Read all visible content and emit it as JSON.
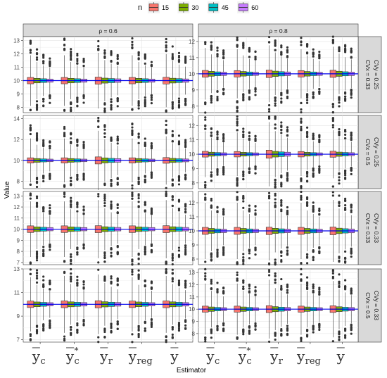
{
  "chart_data": {
    "type": "boxplot",
    "xlabel": "Estimator",
    "ylabel": "Value",
    "reference_line": 10,
    "legend": {
      "title": "n",
      "position": "top",
      "entries": [
        {
          "label": "15",
          "color": "#F8766D"
        },
        {
          "label": "30",
          "color": "#7CAE00"
        },
        {
          "label": "45",
          "color": "#00BFC4"
        },
        {
          "label": "60",
          "color": "#C77CFF"
        }
      ]
    },
    "estimators": [
      {
        "base": "y",
        "sub": "c",
        "star": ""
      },
      {
        "base": "y",
        "sub": "c",
        "star": "*"
      },
      {
        "base": "y",
        "sub": "r",
        "star": ""
      },
      {
        "base": "y",
        "sub": "reg",
        "star": ""
      },
      {
        "base": "y",
        "sub": "",
        "star": ""
      }
    ],
    "col_strips": [
      "ρ = 0.6",
      "ρ = 0.8"
    ],
    "row_strips": [
      "CVy = 0.25\nCVx = 0.33",
      "CVy = 0.25\nCVx = 0.5",
      "CVy = 0.33\nCVx = 0.33",
      "CVy = 0.33\nCVx = 0.5"
    ],
    "row_strips_display": [
      [
        "CVx = 0.33",
        "CVy = 0.25"
      ],
      [
        "CVx = 0.5",
        "CVy = 0.25"
      ],
      [
        "CVx = 0.33",
        "CVy = 0.33"
      ],
      [
        "CVx = 0.5",
        "CVy = 0.33"
      ]
    ],
    "panels": [
      {
        "row": 0,
        "col": 0,
        "ylim": [
          7.6,
          13.3
        ],
        "yticks": [
          8,
          9,
          10,
          11,
          12,
          13
        ],
        "spread": [
          [
            0.48,
            1.9
          ],
          [
            0.34,
            1.4
          ],
          [
            0.28,
            1.15
          ],
          [
            0.24,
            1.0
          ]
        ],
        "est_scale": [
          1.0,
          1.0,
          1.1,
          1.0,
          1.05
        ]
      },
      {
        "row": 0,
        "col": 1,
        "ylim": [
          7.6,
          12.3
        ],
        "yticks": [
          8,
          9,
          10,
          11,
          12
        ],
        "spread": [
          [
            0.42,
            1.6
          ],
          [
            0.3,
            1.2
          ],
          [
            0.24,
            0.98
          ],
          [
            0.21,
            0.85
          ]
        ],
        "est_scale": [
          1.0,
          0.95,
          1.1,
          0.95,
          1.05
        ]
      },
      {
        "row": 1,
        "col": 0,
        "ylim": [
          7.3,
          14.3
        ],
        "yticks": [
          8,
          10,
          12,
          14
        ],
        "spread": [
          [
            0.5,
            2.1
          ],
          [
            0.36,
            1.5
          ],
          [
            0.29,
            1.25
          ],
          [
            0.25,
            1.05
          ]
        ],
        "est_scale": [
          1.0,
          1.0,
          1.35,
          1.0,
          1.1
        ]
      },
      {
        "row": 1,
        "col": 1,
        "ylim": [
          7.6,
          12.7
        ],
        "yticks": [
          8,
          9,
          10,
          11,
          12
        ],
        "spread": [
          [
            0.4,
            1.6
          ],
          [
            0.28,
            1.15
          ],
          [
            0.23,
            0.95
          ],
          [
            0.2,
            0.82
          ]
        ],
        "est_scale": [
          1.0,
          0.95,
          1.4,
          0.95,
          1.05
        ]
      },
      {
        "row": 2,
        "col": 0,
        "ylim": [
          6.8,
          13.4
        ],
        "yticks": [
          7,
          8,
          9,
          10,
          11,
          12,
          13
        ],
        "spread": [
          [
            0.6,
            2.5
          ],
          [
            0.42,
            1.8
          ],
          [
            0.35,
            1.45
          ],
          [
            0.3,
            1.25
          ]
        ],
        "est_scale": [
          1.0,
          1.0,
          1.05,
          1.0,
          1.05
        ]
      },
      {
        "row": 2,
        "col": 1,
        "ylim": [
          7.6,
          12.8
        ],
        "yticks": [
          8,
          9,
          10,
          11,
          12
        ],
        "spread": [
          [
            0.5,
            2.0
          ],
          [
            0.35,
            1.45
          ],
          [
            0.28,
            1.2
          ],
          [
            0.25,
            1.02
          ]
        ],
        "est_scale": [
          1.0,
          1.0,
          1.05,
          1.0,
          1.1
        ]
      },
      {
        "row": 3,
        "col": 0,
        "ylim": [
          6.8,
          13.0
        ],
        "yticks": [
          7,
          9,
          11,
          13
        ],
        "spread": [
          [
            0.55,
            2.3
          ],
          [
            0.4,
            1.65
          ],
          [
            0.33,
            1.35
          ],
          [
            0.28,
            1.15
          ]
        ],
        "est_scale": [
          1.0,
          1.05,
          1.1,
          1.0,
          1.05
        ]
      },
      {
        "row": 3,
        "col": 1,
        "ylim": [
          7.3,
          13.3
        ],
        "yticks": [
          8,
          9,
          10,
          11,
          12,
          13
        ],
        "spread": [
          [
            0.5,
            2.1
          ],
          [
            0.36,
            1.5
          ],
          [
            0.29,
            1.25
          ],
          [
            0.25,
            1.05
          ]
        ],
        "est_scale": [
          1.0,
          1.0,
          1.15,
          1.0,
          1.1
        ]
      }
    ]
  }
}
